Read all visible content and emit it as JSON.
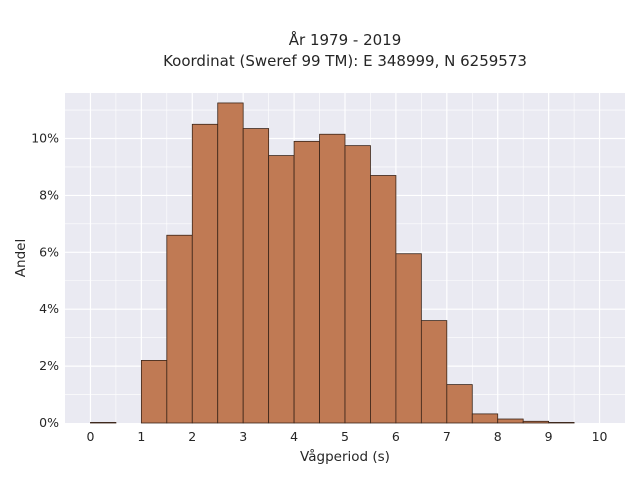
{
  "chart_data": {
    "type": "bar",
    "title": "År 1979 - 2019",
    "subtitle": "Koordinat (Sweref 99 TM): E 348999, N 6259573",
    "xlabel": "Vågperiod (s)",
    "ylabel": "Andel",
    "xlim": [
      -0.5,
      10.5
    ],
    "ylim": [
      0,
      11.6
    ],
    "x_ticks": [
      "0",
      "1",
      "2",
      "3",
      "4",
      "5",
      "6",
      "7",
      "8",
      "9",
      "10"
    ],
    "y_ticks": [
      {
        "value": 0,
        "label": "0%"
      },
      {
        "value": 2,
        "label": "2%"
      },
      {
        "value": 4,
        "label": "4%"
      },
      {
        "value": 6,
        "label": "6%"
      },
      {
        "value": 8,
        "label": "8%"
      },
      {
        "value": 10,
        "label": "10%"
      }
    ],
    "bin_width": 0.5,
    "bins": [
      {
        "start": 0.0,
        "value": 0.02
      },
      {
        "start": 0.5,
        "value": 0.0
      },
      {
        "start": 1.0,
        "value": 2.2
      },
      {
        "start": 1.5,
        "value": 6.6
      },
      {
        "start": 2.0,
        "value": 10.5
      },
      {
        "start": 2.5,
        "value": 11.25
      },
      {
        "start": 3.0,
        "value": 10.35
      },
      {
        "start": 3.5,
        "value": 9.4
      },
      {
        "start": 4.0,
        "value": 9.9
      },
      {
        "start": 4.5,
        "value": 10.15
      },
      {
        "start": 5.0,
        "value": 9.75
      },
      {
        "start": 5.5,
        "value": 8.7
      },
      {
        "start": 6.0,
        "value": 5.95
      },
      {
        "start": 6.5,
        "value": 3.6
      },
      {
        "start": 7.0,
        "value": 1.35
      },
      {
        "start": 7.5,
        "value": 0.32
      },
      {
        "start": 8.0,
        "value": 0.14
      },
      {
        "start": 8.5,
        "value": 0.06
      },
      {
        "start": 9.0,
        "value": 0.02
      },
      {
        "start": 9.5,
        "value": 0.0
      }
    ],
    "grid": true,
    "legend": "none",
    "colors": {
      "bar_fill": "#c07a54",
      "bar_edge": "#3a2418",
      "plot_background": "#eaeaf2",
      "grid": "#ffffff"
    }
  }
}
